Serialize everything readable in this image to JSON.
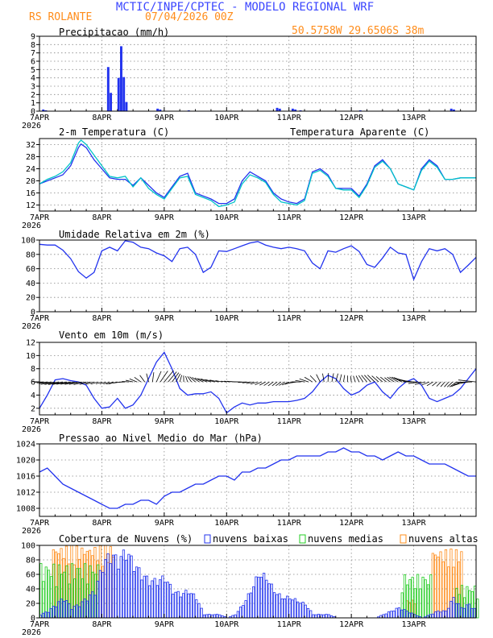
{
  "header": {
    "title": "MCTIC/INPE/CPTEC - MODELO REGIONAL WRF",
    "location": "RS ROLANTE",
    "run": "07/04/2026 00Z",
    "coords": "50.5758W 29.6506S 38m"
  },
  "colors": {
    "title": "#3b46ff",
    "location": "#ff8c1a",
    "series_main": "#2233ee",
    "series_apparent": "#00c3c8",
    "low_clouds": "#2233ee",
    "mid_clouds": "#22cc22",
    "high_clouds": "#ff8c1a",
    "wind_vectors": "#000000"
  },
  "x_axis": {
    "labels": [
      "7APR",
      "8APR",
      "9APR",
      "10APR",
      "11APR",
      "12APR",
      "13APR"
    ],
    "year": "2026",
    "hours_per_day": 24
  },
  "chart_data": [
    {
      "id": "precip",
      "type": "bar",
      "title": "Precipitacao (mm/h)",
      "ylim": [
        0,
        9
      ],
      "yticks": [
        0,
        1,
        2,
        3,
        4,
        5,
        6,
        7,
        8,
        9
      ],
      "unit_step_h": 1,
      "values_sparse": [
        [
          1,
          0.2
        ],
        [
          2,
          0.1
        ],
        [
          26,
          5.3
        ],
        [
          27,
          2.2
        ],
        [
          30,
          4.0
        ],
        [
          31,
          7.8
        ],
        [
          32,
          4.1
        ],
        [
          33,
          1.1
        ],
        [
          45,
          0.3
        ],
        [
          46,
          0.2
        ],
        [
          57,
          0.1
        ],
        [
          91,
          0.4
        ],
        [
          92,
          0.3
        ],
        [
          97,
          0.3
        ],
        [
          98,
          0.2
        ],
        [
          100,
          0.1
        ],
        [
          123,
          0.1
        ],
        [
          158,
          0.3
        ],
        [
          159,
          0.2
        ]
      ]
    },
    {
      "id": "temp",
      "type": "line",
      "title": "2-m Temperatura (C)",
      "ylim": [
        10,
        34
      ],
      "yticks": [
        12,
        16,
        20,
        24,
        28,
        32
      ],
      "series": [
        {
          "name": "2-m Temperatura (C)",
          "color_key": "series_main",
          "x": [
            0,
            3,
            6,
            9,
            12,
            15,
            16,
            18,
            21,
            24,
            27,
            30,
            33,
            36,
            39,
            42,
            45,
            48,
            51,
            54,
            57,
            60,
            63,
            66,
            69,
            72,
            75,
            78,
            81,
            84,
            87,
            90,
            93,
            96,
            99,
            102,
            105,
            108,
            111,
            114,
            117,
            120,
            123,
            126,
            129,
            132,
            135,
            138,
            141,
            144,
            147,
            150,
            153,
            156,
            159,
            162,
            165,
            168
          ],
          "y": [
            19,
            20,
            21,
            22,
            25,
            31,
            32.2,
            31,
            27,
            24,
            21,
            20.5,
            20.5,
            18.5,
            21,
            18.5,
            16,
            14.5,
            18,
            21.5,
            22.5,
            16,
            15,
            14,
            12.5,
            12.5,
            14,
            20,
            23,
            21.5,
            20,
            16,
            14,
            13,
            12.5,
            14,
            23,
            24,
            22,
            17.5,
            17.5,
            17.5,
            15,
            19,
            25,
            27,
            24,
            19,
            18,
            17,
            24,
            27,
            25,
            20.5,
            20.5,
            21,
            21,
            21
          ]
        },
        {
          "name": "Temperatura Aparente (C)",
          "color_key": "series_apparent",
          "x": [
            0,
            3,
            6,
            9,
            12,
            15,
            16,
            18,
            21,
            24,
            27,
            30,
            33,
            36,
            39,
            42,
            45,
            48,
            51,
            54,
            57,
            60,
            63,
            66,
            69,
            72,
            75,
            78,
            81,
            84,
            87,
            90,
            93,
            96,
            99,
            102,
            105,
            108,
            111,
            114,
            117,
            120,
            123,
            126,
            129,
            132,
            135,
            138,
            141,
            144,
            147,
            150,
            153,
            156,
            159,
            162,
            165,
            168
          ],
          "y": [
            19,
            20.5,
            21.5,
            23,
            26,
            32.5,
            33.5,
            32,
            28.5,
            25,
            21.5,
            21,
            21.5,
            18,
            21,
            17.5,
            15.5,
            14,
            17.5,
            21,
            21.5,
            15.5,
            14.5,
            13.5,
            11.5,
            12,
            13,
            19,
            22,
            21,
            19.5,
            15.5,
            13,
            12.5,
            12,
            13.5,
            22.5,
            23.5,
            21.5,
            17.5,
            17,
            17,
            14.5,
            18.5,
            24.5,
            26.5,
            24,
            19,
            18,
            17,
            23.5,
            26.5,
            24.5,
            20.5,
            20.5,
            21,
            21,
            21
          ]
        }
      ]
    },
    {
      "id": "rh",
      "type": "line",
      "title": "Umidade Relativa em 2m (%)",
      "ylim": [
        0,
        100
      ],
      "yticks": [
        0,
        20,
        40,
        60,
        80,
        100
      ],
      "series": [
        {
          "name": "Umidade Relativa em 2m (%)",
          "color_key": "series_main",
          "x": [
            0,
            3,
            6,
            9,
            12,
            15,
            18,
            21,
            24,
            27,
            30,
            33,
            36,
            39,
            42,
            45,
            48,
            51,
            54,
            57,
            60,
            63,
            66,
            69,
            72,
            75,
            78,
            81,
            84,
            87,
            90,
            93,
            96,
            99,
            102,
            105,
            108,
            111,
            114,
            117,
            120,
            123,
            126,
            129,
            132,
            135,
            138,
            141,
            144,
            147,
            150,
            153,
            156,
            159,
            162,
            165,
            168
          ],
          "y": [
            94,
            93,
            93,
            86,
            74,
            56,
            47,
            55,
            85,
            90,
            85,
            99,
            97,
            90,
            88,
            82,
            78,
            70,
            88,
            90,
            80,
            55,
            62,
            85,
            84,
            88,
            92,
            96,
            98,
            93,
            90,
            88,
            90,
            88,
            85,
            68,
            60,
            85,
            83,
            88,
            92,
            84,
            66,
            62,
            75,
            90,
            82,
            80,
            45,
            70,
            88,
            85,
            88,
            80,
            55,
            65,
            76
          ]
        }
      ]
    },
    {
      "id": "wind",
      "type": "line",
      "title": "Vento em 10m (m/s)",
      "ylim": [
        1,
        12
      ],
      "yticks": [
        2,
        4,
        6,
        8,
        10,
        12
      ],
      "series": [
        {
          "name": "Vento em 10m (m/s)",
          "color_key": "series_main",
          "x": [
            0,
            3,
            6,
            9,
            12,
            15,
            18,
            21,
            24,
            27,
            30,
            33,
            36,
            39,
            42,
            45,
            48,
            51,
            54,
            57,
            60,
            63,
            66,
            69,
            72,
            75,
            78,
            81,
            84,
            87,
            90,
            93,
            96,
            99,
            102,
            105,
            108,
            111,
            114,
            117,
            120,
            123,
            126,
            129,
            132,
            135,
            138,
            141,
            144,
            147,
            150,
            153,
            156,
            159,
            162,
            165,
            168
          ],
          "y": [
            2,
            4,
            6.3,
            6.5,
            6.2,
            6,
            5.5,
            3.5,
            2,
            2.2,
            3.5,
            2,
            2.5,
            4,
            6.5,
            9,
            10.5,
            8,
            5,
            4,
            4.2,
            4.2,
            4.5,
            3.5,
            1.3,
            2.2,
            2.8,
            2.5,
            2.8,
            2.8,
            3,
            3,
            3,
            3.2,
            3.5,
            4.5,
            6,
            7,
            6.5,
            5,
            4,
            4.5,
            5.5,
            6,
            4.5,
            3.5,
            5,
            6,
            6.5,
            5.5,
            3.5,
            3,
            3.5,
            4,
            5,
            6.5,
            8
          ]
        }
      ],
      "vectors": {
        "color_key": "wind_vectors",
        "baseline": 6
      }
    },
    {
      "id": "pressure",
      "type": "line",
      "title": "Pressao ao Nivel Medio do Mar (hPa)",
      "ylim": [
        1006,
        1024
      ],
      "yticks": [
        1008,
        1012,
        1016,
        1020,
        1024
      ],
      "series": [
        {
          "name": "Pressao ao Nivel Medio do Mar (hPa)",
          "color_key": "series_main",
          "x": [
            0,
            3,
            6,
            9,
            12,
            15,
            18,
            21,
            24,
            27,
            30,
            33,
            36,
            39,
            42,
            45,
            48,
            51,
            54,
            57,
            60,
            63,
            66,
            69,
            72,
            75,
            78,
            81,
            84,
            87,
            90,
            93,
            96,
            99,
            102,
            105,
            108,
            111,
            114,
            117,
            120,
            123,
            126,
            129,
            132,
            135,
            138,
            141,
            144,
            147,
            150,
            153,
            156,
            159,
            162,
            165,
            168
          ],
          "y": [
            1017,
            1018,
            1016,
            1014,
            1013,
            1012,
            1011,
            1010,
            1009,
            1008,
            1008,
            1009,
            1009,
            1010,
            1010,
            1009,
            1011,
            1012,
            1012,
            1013,
            1014,
            1014,
            1015,
            1016,
            1016,
            1015,
            1017,
            1017,
            1018,
            1018,
            1019,
            1020,
            1020,
            1021,
            1021,
            1021,
            1021,
            1022,
            1022,
            1023,
            1022,
            1022,
            1021,
            1021,
            1020,
            1021,
            1022,
            1021,
            1021,
            1020,
            1019,
            1019,
            1019,
            1018,
            1017,
            1016,
            1016
          ]
        }
      ]
    },
    {
      "id": "clouds",
      "type": "bar",
      "title": "Cobertura de Nuvens (%)",
      "ylim": [
        0,
        100
      ],
      "yticks": [
        0,
        20,
        40,
        60,
        80,
        100
      ],
      "legend": [
        {
          "label": "nuvens baixas",
          "color_key": "low_clouds"
        },
        {
          "label": "nuvens medias",
          "color_key": "mid_clouds"
        },
        {
          "label": "nuvens altas",
          "color_key": "high_clouds"
        }
      ],
      "low_x": [
        0,
        3,
        6,
        9,
        12,
        15,
        18,
        21,
        24,
        27,
        30,
        33,
        36,
        39,
        42,
        45,
        48,
        51,
        54,
        57,
        60,
        63,
        66,
        69,
        72,
        75,
        78,
        81,
        84,
        87,
        90,
        93,
        96,
        99,
        102,
        105,
        108,
        111,
        114,
        117,
        120,
        123,
        126,
        129,
        132,
        135,
        138,
        141,
        144,
        147,
        150,
        153,
        156,
        159,
        162,
        165,
        168
      ],
      "low_y": [
        5,
        10,
        20,
        30,
        15,
        20,
        30,
        40,
        80,
        95,
        85,
        100,
        80,
        65,
        55,
        55,
        60,
        40,
        35,
        40,
        30,
        5,
        5,
        5,
        0,
        5,
        20,
        40,
        65,
        60,
        40,
        30,
        30,
        25,
        20,
        5,
        5,
        5,
        0,
        0,
        0,
        0,
        0,
        0,
        5,
        10,
        15,
        10,
        5,
        0,
        5,
        10,
        10,
        30,
        15,
        20,
        10
      ],
      "mid_ranges": [
        [
          0,
          22,
          75
        ],
        [
          139,
          150,
          60
        ],
        [
          160,
          168,
          45
        ]
      ],
      "high_ranges": [
        [
          5,
          28,
          100
        ],
        [
          141,
          144,
          25
        ],
        [
          151,
          162,
          95
        ]
      ]
    }
  ]
}
